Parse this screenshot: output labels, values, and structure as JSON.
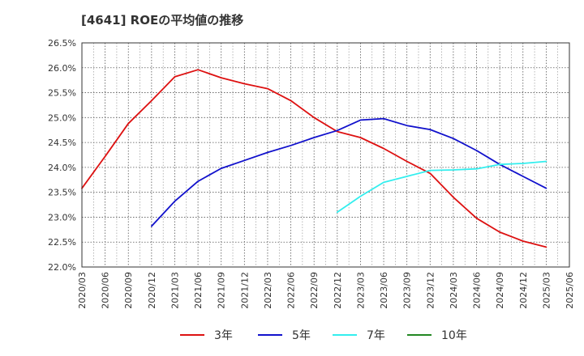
{
  "chart_data": {
    "type": "line",
    "title": "[4641]  ROEの平均値の推移",
    "xlabel": "",
    "ylabel": "",
    "ylim": [
      22.0,
      26.5
    ],
    "yticks": [
      22.0,
      22.5,
      23.0,
      23.5,
      24.0,
      24.5,
      25.0,
      25.5,
      26.0,
      26.5
    ],
    "ytick_labels": [
      "22.0%",
      "22.5%",
      "23.0%",
      "23.5%",
      "24.0%",
      "24.5%",
      "25.0%",
      "25.5%",
      "26.0%",
      "26.5%"
    ],
    "categories": [
      "2020/03",
      "2020/06",
      "2020/09",
      "2020/12",
      "2021/03",
      "2021/06",
      "2021/09",
      "2021/12",
      "2022/03",
      "2022/06",
      "2022/09",
      "2022/12",
      "2023/03",
      "2023/06",
      "2023/09",
      "2023/12",
      "2024/03",
      "2024/06",
      "2024/09",
      "2024/12",
      "2025/03",
      "2025/06"
    ],
    "grid": true,
    "legend_position": "bottom",
    "series": [
      {
        "name": "3年",
        "color": "#dd1111",
        "values": [
          23.58,
          24.22,
          24.88,
          25.34,
          25.82,
          25.96,
          25.8,
          25.68,
          25.58,
          25.34,
          25.0,
          24.72,
          24.6,
          24.38,
          24.12,
          23.88,
          23.4,
          22.98,
          22.7,
          22.52,
          22.4,
          null
        ]
      },
      {
        "name": "5年",
        "color": "#1111cc",
        "values": [
          null,
          null,
          null,
          22.82,
          23.32,
          23.72,
          23.98,
          24.14,
          24.3,
          24.44,
          24.6,
          24.74,
          24.95,
          24.98,
          24.84,
          24.76,
          24.58,
          24.34,
          24.06,
          23.82,
          23.58,
          null
        ]
      },
      {
        "name": "7年",
        "color": "#33eeee",
        "values": [
          null,
          null,
          null,
          null,
          null,
          null,
          null,
          null,
          null,
          null,
          null,
          23.1,
          23.42,
          23.7,
          23.82,
          23.94,
          23.95,
          23.97,
          24.06,
          24.08,
          24.12,
          null
        ]
      },
      {
        "name": "10年",
        "color": "#228822",
        "values": [
          null,
          null,
          null,
          null,
          null,
          null,
          null,
          null,
          null,
          null,
          null,
          null,
          null,
          null,
          null,
          null,
          null,
          null,
          null,
          null,
          null,
          null
        ]
      }
    ]
  }
}
